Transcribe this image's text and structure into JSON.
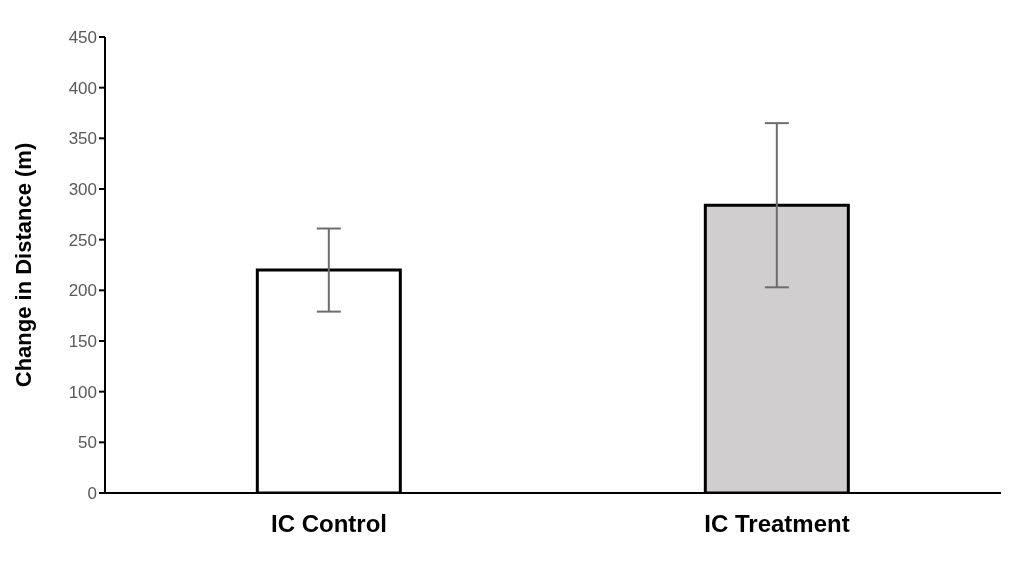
{
  "chart_data": {
    "type": "bar",
    "ylabel": "Change in Distance (m)",
    "categories": [
      "IC Control",
      "IC Treatment"
    ],
    "values": [
      220,
      284
    ],
    "colors": [
      "#ffffff",
      "#d0cecf"
    ],
    "errors": [
      41,
      81
    ],
    "ylim": [
      0,
      450
    ],
    "yticks": [
      0,
      50,
      100,
      150,
      200,
      250,
      300,
      350,
      400,
      450
    ],
    "grid": false,
    "legend": false
  }
}
